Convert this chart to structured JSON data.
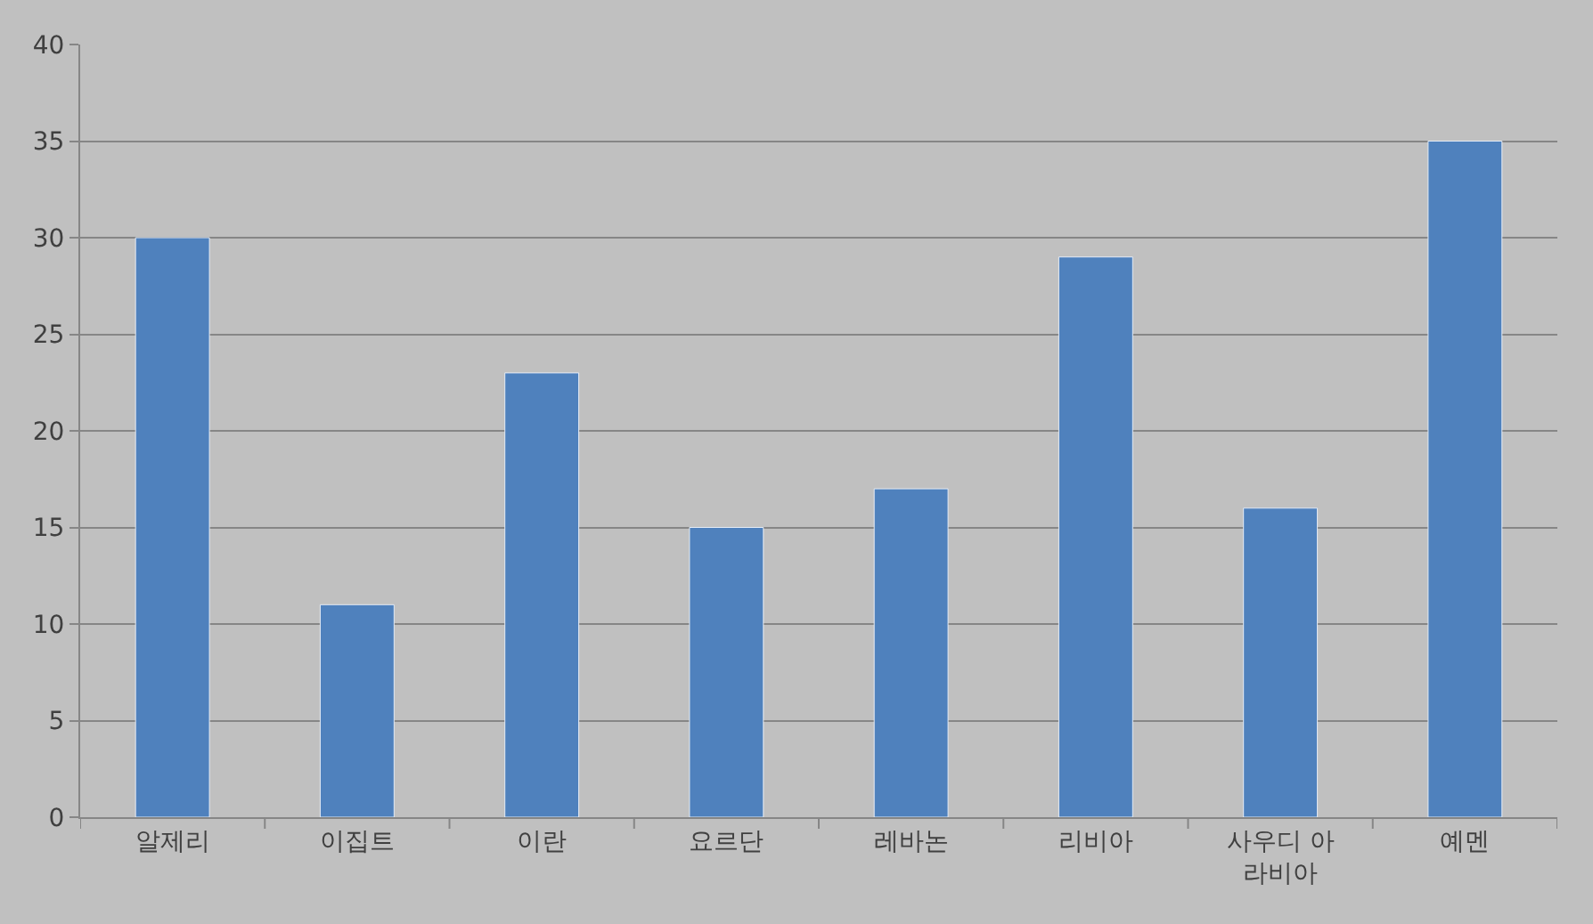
{
  "chart_data": {
    "type": "bar",
    "categories": [
      "알제리",
      "이집트",
      "이란",
      "요르단",
      "레바논",
      "리비아",
      "사우디 아라비아",
      "예멘"
    ],
    "values": [
      30,
      11,
      23,
      15,
      17,
      29,
      16,
      35
    ],
    "color": "#4f81bd",
    "ylim": [
      0,
      40
    ],
    "yticks": [
      0,
      5,
      10,
      15,
      20,
      25,
      30,
      35,
      40
    ],
    "grid": "y"
  }
}
